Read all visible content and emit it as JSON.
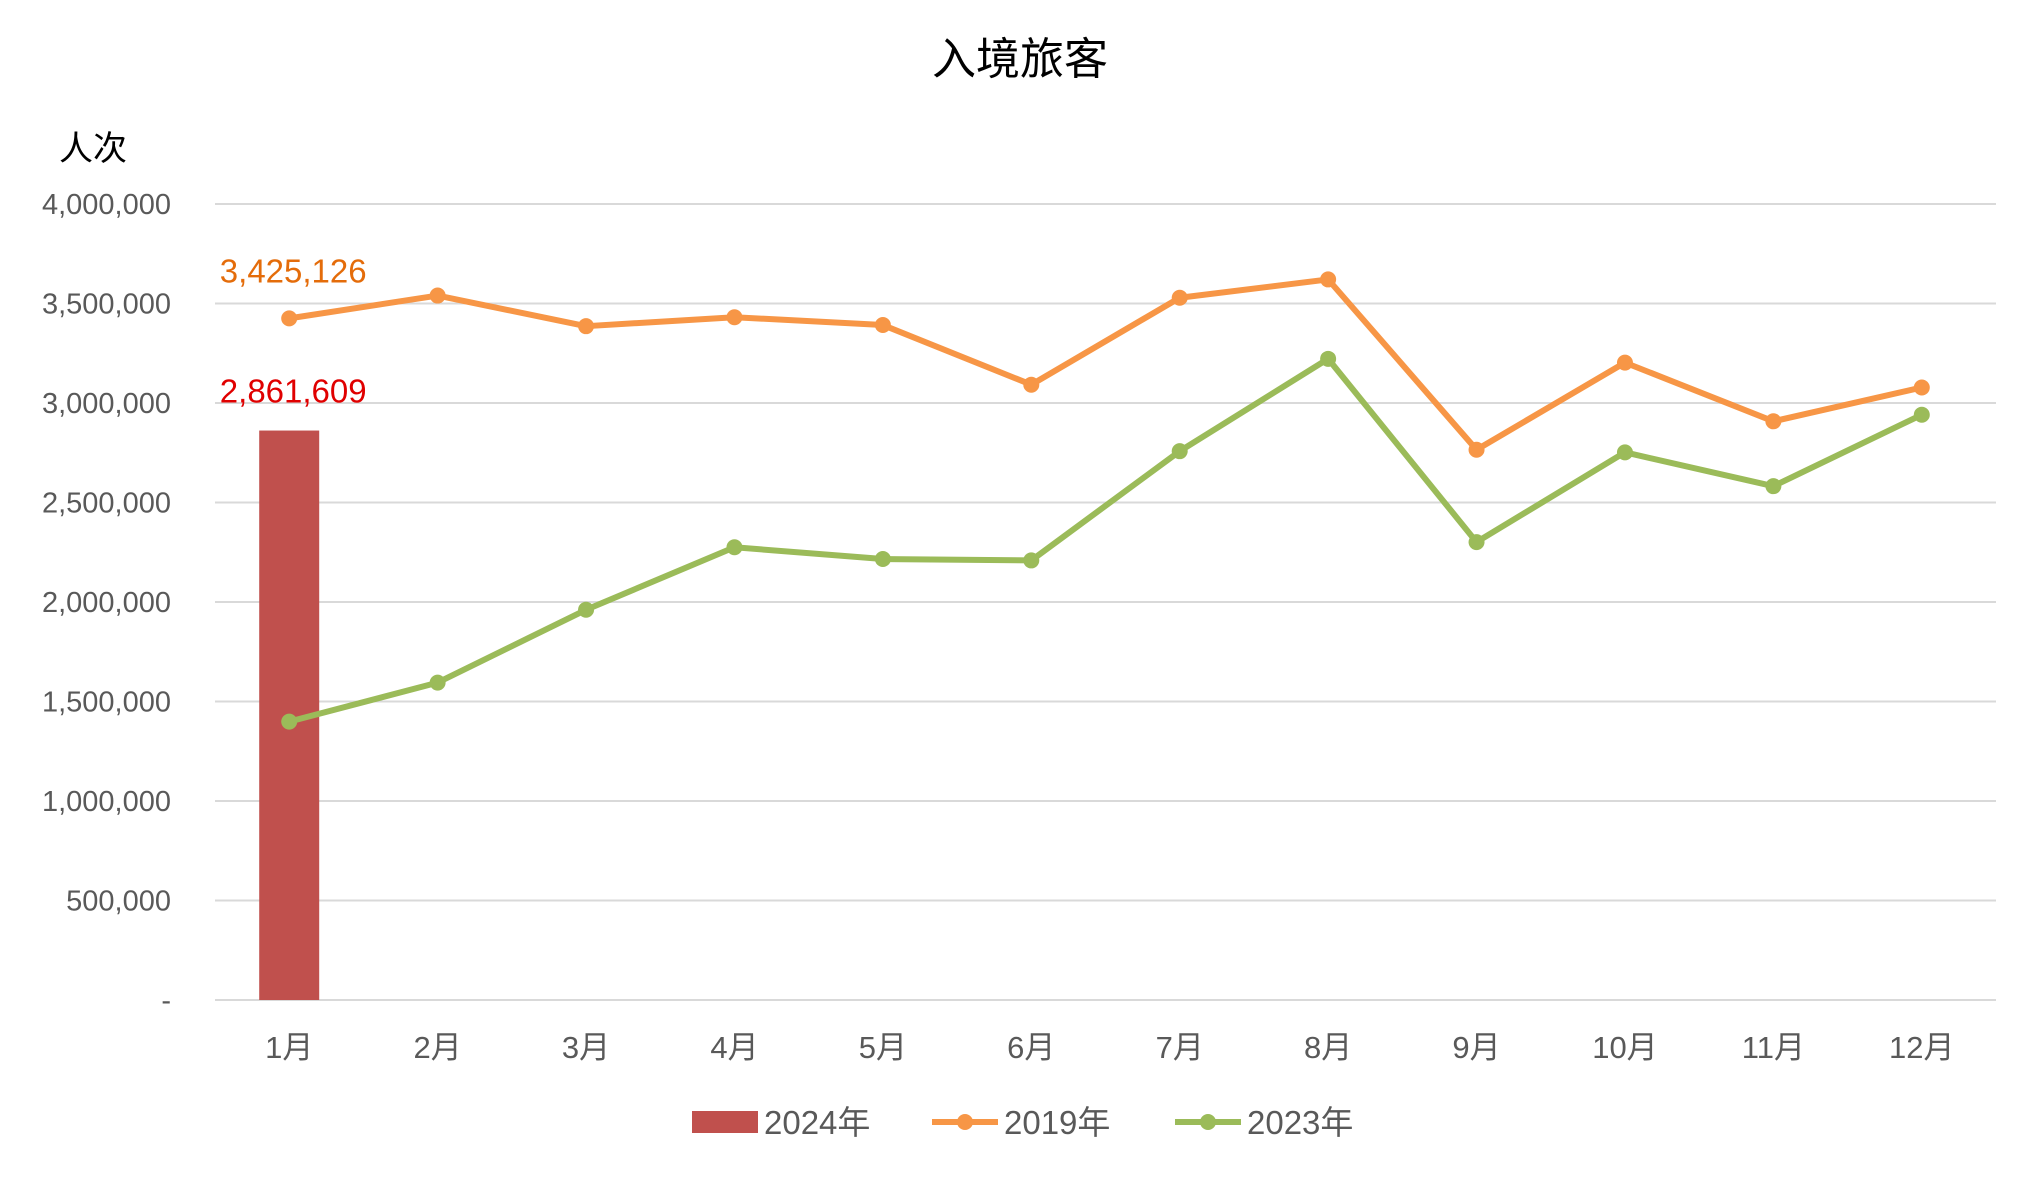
{
  "chart_data": {
    "type": "bar+line",
    "title": "入境旅客",
    "ylabel": "人次",
    "xlabel": "",
    "ylim": [
      0,
      4000000
    ],
    "yticks": [
      0,
      500000,
      1000000,
      1500000,
      2000000,
      2500000,
      3000000,
      3500000,
      4000000
    ],
    "ytick_labels": [
      "-",
      "500,000",
      "1,000,000",
      "1,500,000",
      "2,000,000",
      "2,500,000",
      "3,000,000",
      "3,500,000",
      "4,000,000"
    ],
    "grid": true,
    "legend": "bottom",
    "categories": [
      "1月",
      "2月",
      "3月",
      "4月",
      "5月",
      "6月",
      "7月",
      "8月",
      "9月",
      "10月",
      "11月",
      "12月"
    ],
    "series": [
      {
        "name": "2024年",
        "kind": "bar",
        "color": "#C0504D",
        "values": [
          2861609,
          null,
          null,
          null,
          null,
          null,
          null,
          null,
          null,
          null,
          null,
          null
        ],
        "data_labels": [
          {
            "index": 0,
            "text": "2,861,609",
            "color": "#E00000"
          }
        ]
      },
      {
        "name": "2019年",
        "kind": "line",
        "color": "#F79646",
        "values": [
          3425126,
          3540000,
          3386000,
          3431000,
          3392000,
          3092000,
          3529000,
          3621000,
          2765000,
          3203000,
          2908000,
          3078000
        ],
        "data_labels": [
          {
            "index": 0,
            "text": "3,425,126",
            "color": "#E46C0A"
          }
        ]
      },
      {
        "name": "2023年",
        "kind": "line",
        "color": "#9BBB59",
        "values": [
          1399000,
          1595000,
          1961000,
          2275000,
          2216000,
          2209000,
          2758000,
          3222000,
          2301000,
          2752000,
          2582000,
          2941000
        ]
      }
    ]
  }
}
